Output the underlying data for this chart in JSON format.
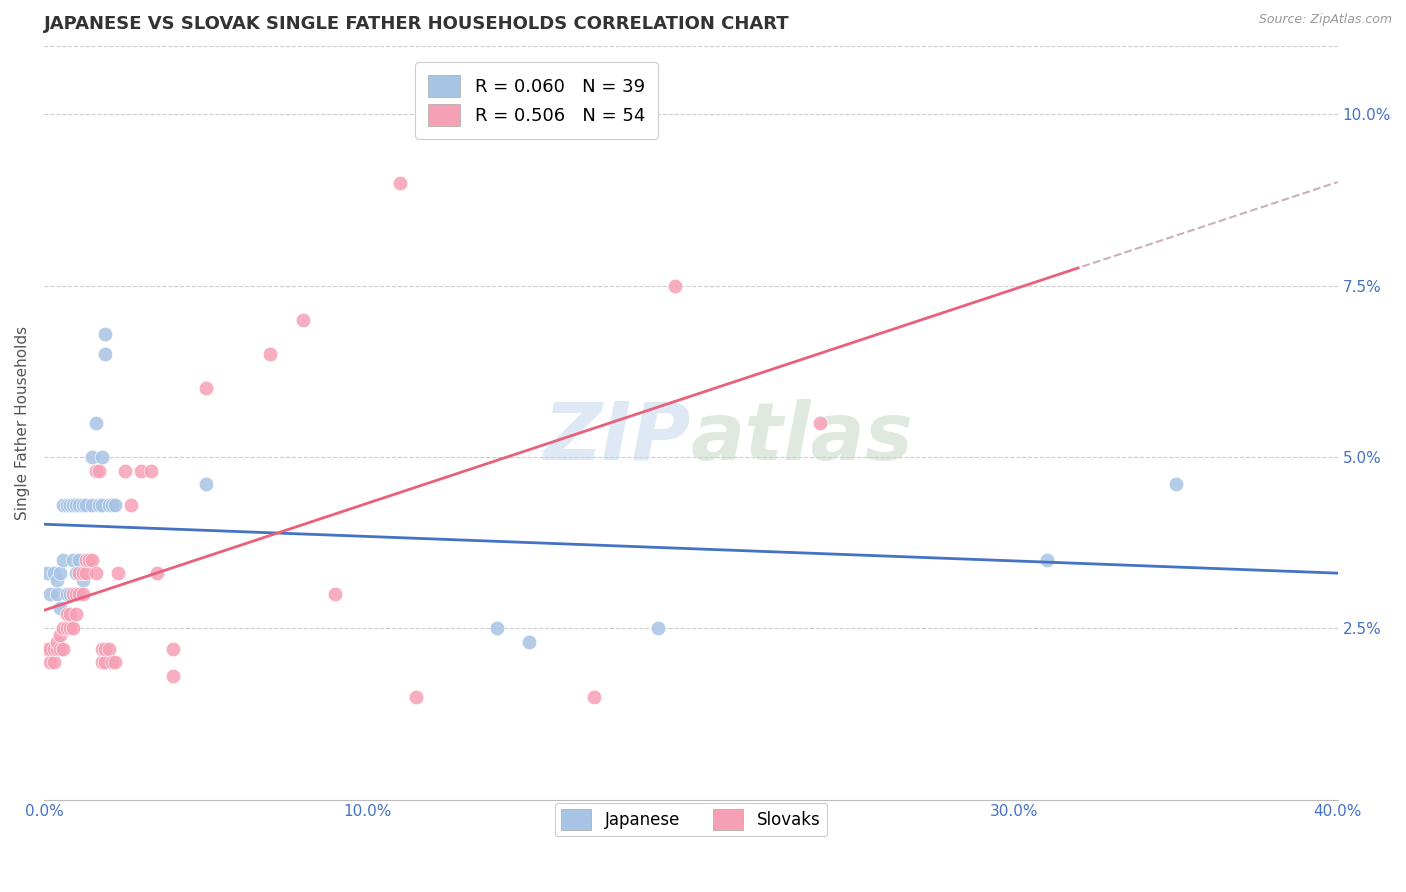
{
  "title": "JAPANESE VS SLOVAK SINGLE FATHER HOUSEHOLDS CORRELATION CHART",
  "source": "Source: ZipAtlas.com",
  "ylabel": "Single Father Households",
  "xlim": [
    0.0,
    0.4
  ],
  "ylim": [
    0.0,
    0.11
  ],
  "yticks": [
    0.025,
    0.05,
    0.075,
    0.1
  ],
  "ytick_labels": [
    "2.5%",
    "5.0%",
    "7.5%",
    "10.0%"
  ],
  "xticks": [
    0.0,
    0.1,
    0.2,
    0.3,
    0.4
  ],
  "xtick_labels": [
    "0.0%",
    "10.0%",
    "20.0%",
    "30.0%",
    "40.0%"
  ],
  "watermark": "ZIPatlas",
  "legend_r1": "R = 0.060   N = 39",
  "legend_r2": "R = 0.506   N = 54",
  "japanese_color": "#a8c4e5",
  "slovak_color": "#f5a0b5",
  "japanese_line_color": "#4472c4",
  "slovak_line_color": "#e8607a",
  "japanese_scatter": [
    [
      0.001,
      0.033
    ],
    [
      0.002,
      0.03
    ],
    [
      0.003,
      0.033
    ],
    [
      0.004,
      0.03
    ],
    [
      0.004,
      0.032
    ],
    [
      0.005,
      0.033
    ],
    [
      0.005,
      0.028
    ],
    [
      0.006,
      0.043
    ],
    [
      0.006,
      0.035
    ],
    [
      0.007,
      0.043
    ],
    [
      0.007,
      0.03
    ],
    [
      0.008,
      0.043
    ],
    [
      0.008,
      0.03
    ],
    [
      0.009,
      0.043
    ],
    [
      0.009,
      0.035
    ],
    [
      0.01,
      0.043
    ],
    [
      0.01,
      0.033
    ],
    [
      0.011,
      0.043
    ],
    [
      0.011,
      0.035
    ],
    [
      0.012,
      0.043
    ],
    [
      0.012,
      0.032
    ],
    [
      0.013,
      0.043
    ],
    [
      0.015,
      0.05
    ],
    [
      0.015,
      0.043
    ],
    [
      0.016,
      0.055
    ],
    [
      0.017,
      0.043
    ],
    [
      0.018,
      0.05
    ],
    [
      0.018,
      0.043
    ],
    [
      0.019,
      0.068
    ],
    [
      0.019,
      0.065
    ],
    [
      0.02,
      0.043
    ],
    [
      0.021,
      0.043
    ],
    [
      0.022,
      0.043
    ],
    [
      0.05,
      0.046
    ],
    [
      0.14,
      0.025
    ],
    [
      0.15,
      0.023
    ],
    [
      0.19,
      0.025
    ],
    [
      0.31,
      0.035
    ],
    [
      0.35,
      0.046
    ]
  ],
  "slovak_scatter": [
    [
      0.001,
      0.022
    ],
    [
      0.002,
      0.02
    ],
    [
      0.002,
      0.022
    ],
    [
      0.003,
      0.02
    ],
    [
      0.003,
      0.022
    ],
    [
      0.004,
      0.022
    ],
    [
      0.004,
      0.023
    ],
    [
      0.005,
      0.022
    ],
    [
      0.005,
      0.024
    ],
    [
      0.006,
      0.022
    ],
    [
      0.006,
      0.025
    ],
    [
      0.007,
      0.025
    ],
    [
      0.007,
      0.027
    ],
    [
      0.008,
      0.025
    ],
    [
      0.008,
      0.027
    ],
    [
      0.009,
      0.025
    ],
    [
      0.009,
      0.03
    ],
    [
      0.01,
      0.027
    ],
    [
      0.01,
      0.03
    ],
    [
      0.011,
      0.03
    ],
    [
      0.011,
      0.033
    ],
    [
      0.012,
      0.03
    ],
    [
      0.012,
      0.033
    ],
    [
      0.013,
      0.033
    ],
    [
      0.013,
      0.035
    ],
    [
      0.014,
      0.035
    ],
    [
      0.015,
      0.035
    ],
    [
      0.016,
      0.033
    ],
    [
      0.016,
      0.048
    ],
    [
      0.017,
      0.048
    ],
    [
      0.018,
      0.02
    ],
    [
      0.018,
      0.022
    ],
    [
      0.019,
      0.02
    ],
    [
      0.019,
      0.022
    ],
    [
      0.02,
      0.022
    ],
    [
      0.021,
      0.02
    ],
    [
      0.022,
      0.02
    ],
    [
      0.023,
      0.033
    ],
    [
      0.025,
      0.048
    ],
    [
      0.027,
      0.043
    ],
    [
      0.03,
      0.048
    ],
    [
      0.033,
      0.048
    ],
    [
      0.035,
      0.033
    ],
    [
      0.04,
      0.018
    ],
    [
      0.04,
      0.022
    ],
    [
      0.05,
      0.06
    ],
    [
      0.07,
      0.065
    ],
    [
      0.08,
      0.07
    ],
    [
      0.09,
      0.03
    ],
    [
      0.11,
      0.09
    ],
    [
      0.115,
      0.015
    ],
    [
      0.17,
      0.015
    ],
    [
      0.195,
      0.075
    ],
    [
      0.24,
      0.055
    ]
  ],
  "background_color": "#ffffff",
  "grid_color": "#cccccc",
  "title_fontsize": 13,
  "axis_label_fontsize": 11,
  "tick_fontsize": 11,
  "tick_color": "#4472c4"
}
